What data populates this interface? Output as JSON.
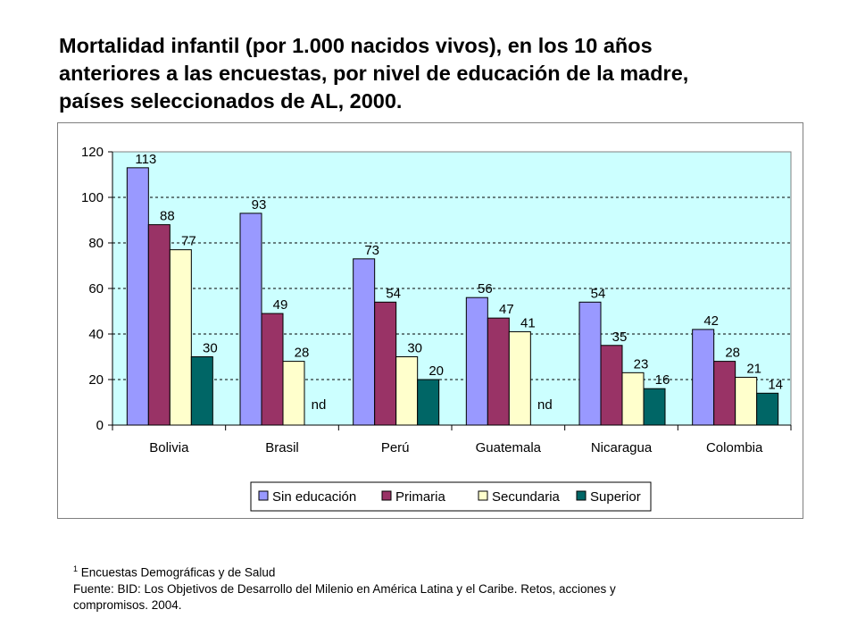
{
  "title_lines": [
    "Mortalidad infantil (por 1.000 nacidos vivos),  en los 10 años",
    "anteriores a las encuestas, por nivel de educación de la madre,",
    "países seleccionados de AL, 2000."
  ],
  "chart_data": {
    "type": "bar",
    "title": "",
    "xlabel": "",
    "ylabel": "",
    "ylim": [
      0,
      120
    ],
    "yticks": [
      "0",
      "20",
      "40",
      "60",
      "80",
      "100",
      "120"
    ],
    "grid": true,
    "legend_position": "bottom",
    "categories": [
      "Bolivia",
      "Brasil",
      "Perú",
      "Guatemala",
      "Nicaragua",
      "Colombia"
    ],
    "series": [
      {
        "name": "Sin educación",
        "color": "#9999ff",
        "values": [
          113,
          93,
          73,
          56,
          54,
          42
        ],
        "labels": [
          "113",
          "93",
          "73",
          "56",
          "54",
          "42"
        ]
      },
      {
        "name": "Primaria",
        "color": "#993366",
        "values": [
          88,
          49,
          54,
          47,
          35,
          28
        ],
        "labels": [
          "88",
          "49",
          "54",
          "47",
          "35",
          "28"
        ]
      },
      {
        "name": "Secundaria",
        "color": "#ffffcc",
        "values": [
          77,
          28,
          30,
          41,
          23,
          21
        ],
        "labels": [
          "77",
          "28",
          "30",
          "41",
          "23",
          "21"
        ]
      },
      {
        "name": "Superior",
        "color": "#006666",
        "values": [
          30,
          null,
          20,
          null,
          16,
          14
        ],
        "labels": [
          "30",
          "nd",
          "20",
          "nd",
          "16",
          "14"
        ]
      }
    ],
    "plot_background": "#ccffff"
  },
  "footnote": {
    "superscript": "1",
    "line1": " Encuestas Demográficas y de Salud",
    "line2": "Fuente: BID: Los Objetivos de Desarrollo del Milenio en América Latina y el Caribe. Retos, acciones y",
    "line3": "compromisos. 2004."
  }
}
